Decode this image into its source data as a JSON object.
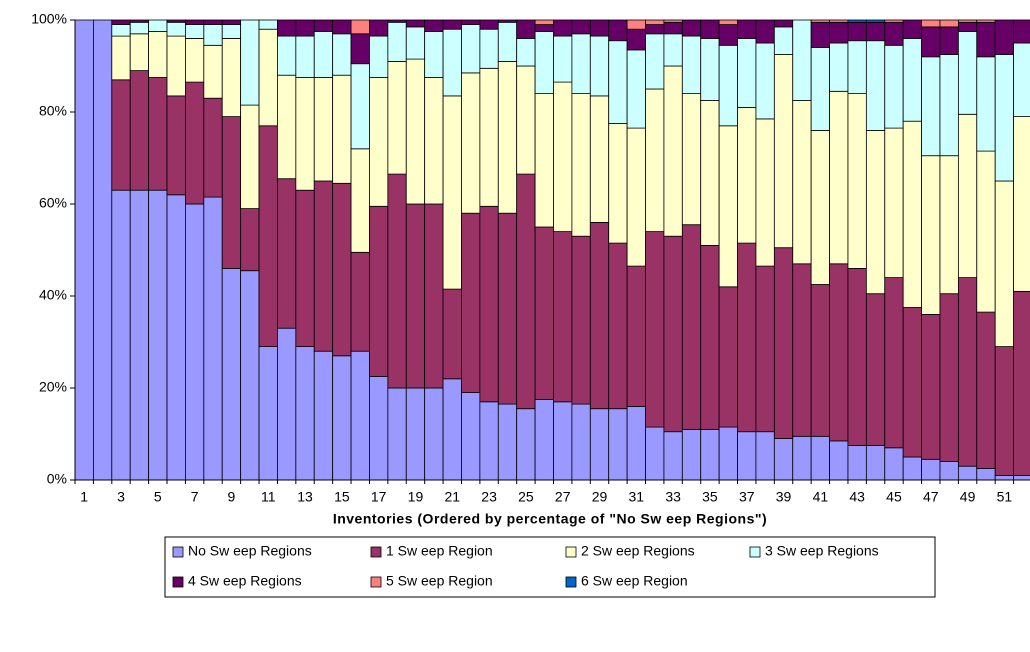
{
  "chart_data": {
    "type": "stacked-bar-percent",
    "x_label": "Inventories (Ordered by percentage of \"No Sw eep Regions\")",
    "categories": [
      "1",
      null,
      "3",
      null,
      "5",
      null,
      "7",
      null,
      "9",
      null,
      "11",
      null,
      "13",
      null,
      "15",
      null,
      "17",
      null,
      "19",
      null,
      "21",
      null,
      "23",
      null,
      "25",
      null,
      "27",
      null,
      "29",
      null,
      "31",
      null,
      "33",
      null,
      "35",
      null,
      "37",
      null,
      "39",
      null,
      "41",
      null,
      "43",
      null,
      "45",
      null,
      "47",
      null,
      "49",
      null,
      "51",
      null
    ],
    "ylim": [
      0,
      100
    ],
    "yticks": [
      {
        "value": 0,
        "label": "0%"
      },
      {
        "value": 20,
        "label": "20%"
      },
      {
        "value": 40,
        "label": "40%"
      },
      {
        "value": 60,
        "label": "60%"
      },
      {
        "value": 80,
        "label": "80%"
      },
      {
        "value": 100,
        "label": "100%"
      }
    ],
    "grid": false,
    "series": [
      {
        "name": "No Sw eep Regions",
        "color": "#9999ff",
        "values": [
          100,
          100,
          63,
          63,
          63,
          62,
          60,
          61.5,
          46,
          45.5,
          29,
          33,
          29,
          28,
          27,
          28,
          22.5,
          20,
          20,
          20,
          22,
          19,
          17,
          16.5,
          15.5,
          17.5,
          17,
          16.5,
          15.5,
          15.5,
          16,
          11.5,
          10.5,
          11,
          11,
          11.5,
          10.5,
          10.5,
          9,
          9.5,
          9.5,
          8.5,
          7.5,
          7.5,
          7,
          5,
          4.5,
          4,
          3,
          2.5,
          1,
          1
        ]
      },
      {
        "name": "1 Sw eep Region",
        "color": "#993366",
        "values": [
          0,
          0,
          24,
          26,
          24.5,
          21.5,
          26.5,
          21.5,
          33,
          13.5,
          48,
          32.5,
          34,
          37,
          37.5,
          21.5,
          37,
          46.5,
          40,
          40,
          19.5,
          39,
          42.5,
          41.5,
          51,
          37.5,
          37,
          36.5,
          40.5,
          36,
          30.5,
          42.5,
          42.5,
          44.5,
          40,
          30.5,
          41,
          36,
          41.5,
          37.5,
          33,
          38.5,
          38.5,
          33,
          37,
          32.5,
          31.5,
          36.5,
          41,
          34,
          28,
          40
        ]
      },
      {
        "name": "2 Sw eep Regions",
        "color": "#ffffcc",
        "values": [
          0,
          0,
          9.5,
          8,
          10,
          13,
          9.5,
          11.5,
          17,
          22.5,
          21,
          22.5,
          24.5,
          22.5,
          23.5,
          22.5,
          28,
          24.5,
          31.5,
          27.5,
          42,
          30.5,
          30,
          33,
          23.5,
          29,
          32.5,
          31,
          27.5,
          26,
          30,
          31,
          37,
          28.5,
          31.5,
          35,
          29.5,
          32,
          42,
          35.5,
          33.5,
          37.5,
          38,
          35.5,
          32.5,
          40.5,
          34.5,
          30,
          35.5,
          35,
          36,
          38
        ]
      },
      {
        "name": "3 Sw eep Regions",
        "color": "#ccffff",
        "values": [
          0,
          0,
          2.5,
          2.5,
          2.5,
          3,
          3,
          4.5,
          3,
          18.5,
          2,
          8.5,
          9,
          10,
          9,
          18.5,
          9,
          8.5,
          7,
          10,
          14.5,
          10.5,
          8.5,
          8.5,
          6,
          13.5,
          10,
          13,
          13,
          18,
          17,
          12,
          7,
          12.5,
          13.5,
          17.5,
          15,
          16.5,
          6,
          17.5,
          18,
          10.5,
          11.5,
          19.5,
          18,
          18,
          21.5,
          22,
          18,
          20.5,
          27.5,
          16
        ]
      },
      {
        "name": "4 Sw eep Regions",
        "color": "#660066",
        "values": [
          0,
          0,
          1,
          0.5,
          0,
          0.5,
          1,
          1,
          1,
          0,
          0,
          3.5,
          3.5,
          2.5,
          3,
          6.5,
          3.5,
          0.5,
          1.5,
          2.5,
          2,
          1,
          2,
          0.5,
          4,
          1.5,
          3.5,
          3,
          3.5,
          4.5,
          4.5,
          2,
          2.5,
          3.5,
          4,
          4.5,
          4,
          5,
          1.5,
          0,
          5.5,
          4.5,
          4,
          4,
          5,
          4,
          6.5,
          6,
          2,
          7.5,
          7.5,
          5
        ]
      },
      {
        "name": "5 Sw eep Region",
        "color": "#ff8080",
        "values": [
          0,
          0,
          0,
          0,
          0,
          0,
          0,
          0,
          0,
          0,
          0,
          0,
          0,
          0,
          0,
          3,
          0,
          0,
          0,
          0,
          0,
          0,
          0,
          0,
          0,
          1,
          0,
          0,
          0,
          0,
          2,
          1,
          0.5,
          0,
          0,
          1,
          0,
          0,
          0,
          0,
          0.5,
          0.5,
          0,
          0,
          0.5,
          0,
          1.5,
          1.5,
          0.5,
          0.5,
          0,
          0
        ]
      },
      {
        "name": "6 Sw eep Region",
        "color": "#0066cc",
        "values": [
          0,
          0,
          0,
          0,
          0,
          0,
          0,
          0,
          0,
          0,
          0,
          0,
          0,
          0,
          0,
          0,
          0,
          0,
          0,
          0,
          0,
          0,
          0,
          0,
          0,
          0,
          0,
          0,
          0,
          0,
          0,
          0,
          0,
          0,
          0,
          0,
          0,
          0,
          0,
          0,
          0,
          0,
          0.5,
          0.5,
          0,
          0,
          0,
          0,
          0,
          0,
          0,
          0
        ]
      }
    ]
  }
}
